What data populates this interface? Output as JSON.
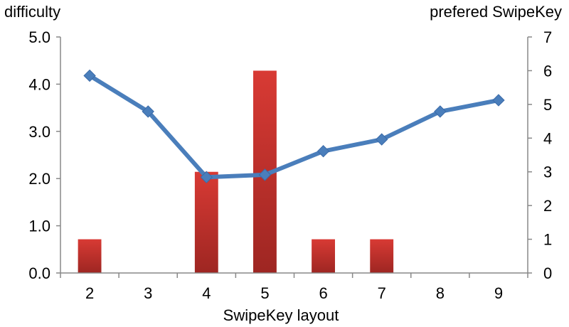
{
  "chart_data": {
    "type": "bar+line",
    "categories": [
      "2",
      "3",
      "4",
      "5",
      "6",
      "7",
      "8",
      "9"
    ],
    "series": [
      {
        "kind": "bar",
        "axis": "right",
        "values": [
          1,
          0,
          3,
          6,
          1,
          1,
          0,
          0
        ],
        "color": "#c8322e"
      },
      {
        "kind": "line",
        "axis": "left",
        "values": [
          4.18,
          3.42,
          2.03,
          2.08,
          2.58,
          2.83,
          3.42,
          3.66
        ],
        "color": "#4a7ebb",
        "marker": "diamond"
      }
    ],
    "xlabel": "SwipeKey layout",
    "ylabel_left": "difficulty",
    "ylabel_right": "prefered SwipeKey",
    "ylim_left": [
      0,
      5
    ],
    "ylim_right": [
      0,
      7
    ],
    "yticks_left": [
      "0.0",
      "1.0",
      "2.0",
      "3.0",
      "4.0",
      "5.0"
    ],
    "yticks_right": [
      "0",
      "1",
      "2",
      "3",
      "4",
      "5",
      "6",
      "7"
    ],
    "grid": false,
    "legend": "none"
  }
}
